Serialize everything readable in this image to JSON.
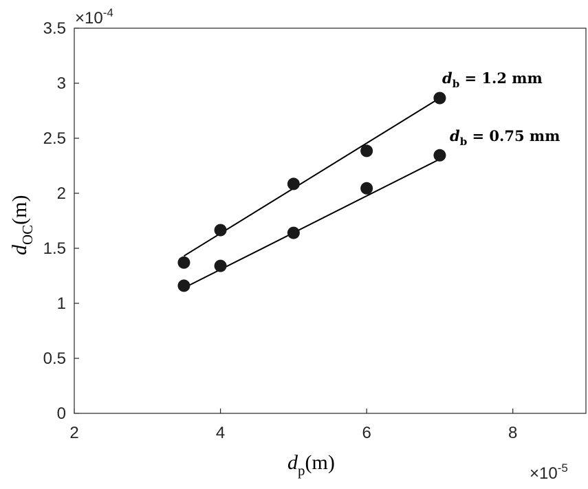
{
  "chart_data": {
    "type": "scatter",
    "x_label": {
      "main": "d",
      "sub": "p",
      "unit": "(m)"
    },
    "y_label": {
      "main": "d",
      "sub": "OC",
      "unit": "(m)"
    },
    "xlim": [
      2e-05,
      9e-05
    ],
    "ylim": [
      0,
      0.00035
    ],
    "x_exponent_label": "×10",
    "x_exponent": "-5",
    "y_exponent_label": "×10",
    "y_exponent": "-4",
    "x_ticks": [
      2,
      4,
      6,
      8
    ],
    "y_ticks": [
      "0",
      "0.5",
      "1",
      "1.5",
      "2",
      "2.5",
      "3",
      "3.5"
    ],
    "grid": false,
    "series": [
      {
        "label": {
          "main": "d",
          "sub": "b",
          "rest": " = 1.2 mm"
        },
        "x": [
          3.5e-05,
          4e-05,
          5e-05,
          6e-05,
          7e-05
        ],
        "y": [
          0.000137,
          0.0001665,
          0.0002085,
          0.0002385,
          0.0002865
        ],
        "fit": {
          "x": [
            3.5e-05,
            7e-05
          ],
          "y": [
            0.000143,
            0.0002865
          ]
        }
      },
      {
        "label": {
          "main": "d",
          "sub": "b",
          "rest": " = 0.75 mm"
        },
        "x": [
          3.5e-05,
          4e-05,
          5e-05,
          6e-05,
          7e-05
        ],
        "y": [
          0.000116,
          0.000134,
          0.000164,
          0.0002045,
          0.0002345
        ],
        "fit": {
          "x": [
            3.5e-05,
            7e-05
          ],
          "y": [
            0.000114,
            0.000231
          ]
        }
      }
    ]
  }
}
